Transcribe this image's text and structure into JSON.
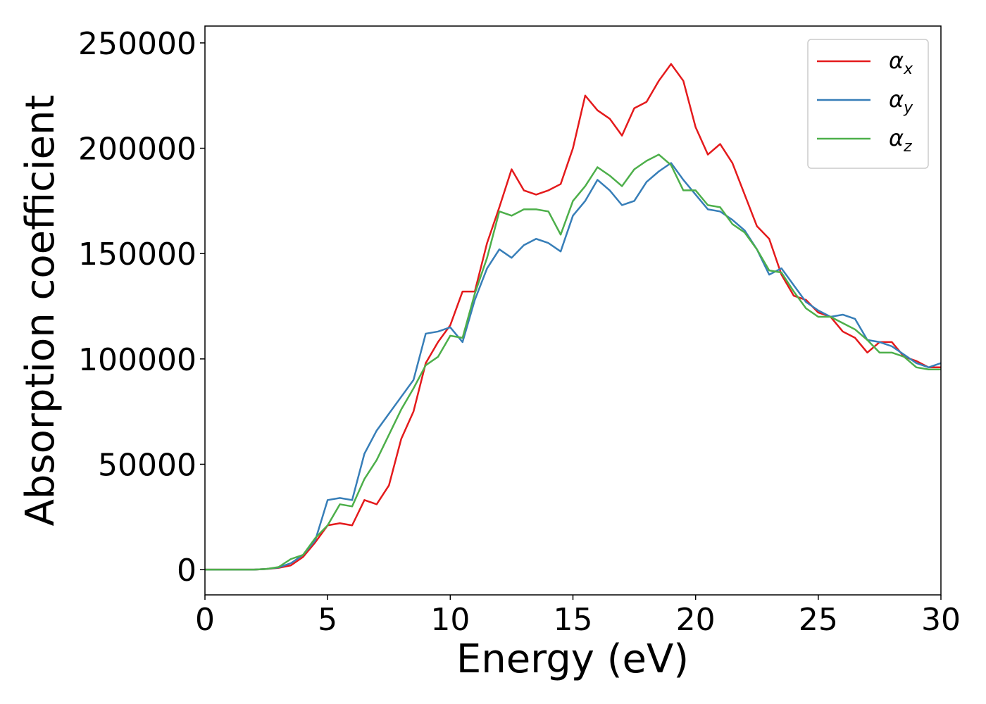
{
  "chart_data": {
    "type": "line",
    "xlabel": "Energy (eV)",
    "ylabel": "Absorption coefficient",
    "x": [
      0,
      0.5,
      1,
      1.5,
      2,
      2.5,
      3,
      3.5,
      4,
      4.5,
      5,
      5.5,
      6,
      6.5,
      7,
      7.5,
      8,
      8.5,
      9,
      9.5,
      10,
      10.5,
      11,
      11.5,
      12,
      12.5,
      13,
      13.5,
      14,
      14.5,
      15,
      15.5,
      16,
      16.5,
      17,
      17.5,
      18,
      18.5,
      19,
      19.5,
      20,
      20.5,
      21,
      21.5,
      22,
      22.5,
      23,
      23.5,
      24,
      24.5,
      25,
      25.5,
      26,
      26.5,
      27,
      27.5,
      28,
      28.5,
      29,
      29.5,
      30
    ],
    "series": [
      {
        "name": "αx",
        "color": "#e41a1c",
        "values": [
          0,
          0,
          0,
          0,
          0,
          300,
          800,
          2000,
          6000,
          13000,
          21000,
          22000,
          21000,
          33000,
          31000,
          40000,
          62000,
          75000,
          98000,
          108000,
          116000,
          132000,
          132000,
          155000,
          172000,
          190000,
          180000,
          178000,
          180000,
          183000,
          200000,
          225000,
          218000,
          214000,
          206000,
          219000,
          222000,
          232000,
          240000,
          232000,
          210000,
          197000,
          202000,
          193000,
          178000,
          163000,
          157000,
          140000,
          130000,
          128000,
          122000,
          120000,
          113000,
          110000,
          103000,
          108000,
          108000,
          101000,
          99000,
          96000,
          96000
        ]
      },
      {
        "name": "αy",
        "color": "#377eb8",
        "values": [
          0,
          0,
          0,
          0,
          0,
          300,
          1000,
          3000,
          7000,
          14000,
          33000,
          34000,
          33000,
          55000,
          66000,
          74000,
          82000,
          90000,
          112000,
          113000,
          115000,
          108000,
          128000,
          143000,
          152000,
          148000,
          154000,
          157000,
          155000,
          151000,
          168000,
          175000,
          185000,
          180000,
          173000,
          175000,
          184000,
          189000,
          193000,
          185000,
          178000,
          171000,
          170000,
          166000,
          161000,
          152000,
          140000,
          143000,
          135000,
          127000,
          123000,
          120000,
          121000,
          119000,
          109000,
          108000,
          106000,
          102000,
          98000,
          96000,
          98000
        ]
      },
      {
        "name": "αz",
        "color": "#4daf4a",
        "values": [
          0,
          0,
          0,
          0,
          0,
          300,
          1200,
          5000,
          7000,
          15000,
          21000,
          31000,
          30000,
          43000,
          52000,
          64000,
          76000,
          86000,
          97000,
          101000,
          111000,
          110000,
          131000,
          148000,
          170000,
          168000,
          171000,
          171000,
          170000,
          159000,
          175000,
          182000,
          191000,
          187000,
          182000,
          190000,
          194000,
          197000,
          192000,
          180000,
          180000,
          173000,
          172000,
          164000,
          160000,
          152000,
          142000,
          141000,
          132000,
          124000,
          120000,
          120000,
          117000,
          114000,
          109000,
          103000,
          103000,
          101000,
          96000,
          95000,
          95000
        ]
      }
    ],
    "xlim": [
      0,
      30
    ],
    "xticks": [
      0,
      5,
      10,
      15,
      20,
      25,
      30
    ],
    "ylim": [
      -12000,
      258000
    ],
    "yticks": [
      0,
      50000,
      100000,
      150000,
      200000,
      250000
    ],
    "legend": "upper right"
  }
}
